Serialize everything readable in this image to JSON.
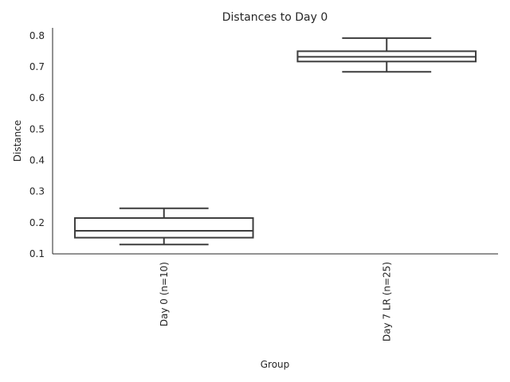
{
  "chart_data": {
    "type": "box",
    "title": "Distances to Day 0",
    "xlabel": "Group",
    "ylabel": "Distance",
    "ylim": [
      0.1,
      0.825
    ],
    "yticks": [
      0.1,
      0.2,
      0.3,
      0.4,
      0.5,
      0.6,
      0.7,
      0.8
    ],
    "ytick_labels": [
      "0.1",
      "0.2",
      "0.3",
      "0.4",
      "0.5",
      "0.6",
      "0.7",
      "0.8"
    ],
    "categories": [
      "Day 0 (n=10)",
      "Day 7 LR (n=25)"
    ],
    "boxes": [
      {
        "whisker_low": 0.13,
        "q1": 0.152,
        "median": 0.174,
        "q3": 0.215,
        "whisker_high": 0.246
      },
      {
        "whisker_low": 0.684,
        "q1": 0.717,
        "median": 0.732,
        "q3": 0.75,
        "whisker_high": 0.792
      }
    ],
    "grid": false,
    "box_color": "#3d3d3d"
  }
}
